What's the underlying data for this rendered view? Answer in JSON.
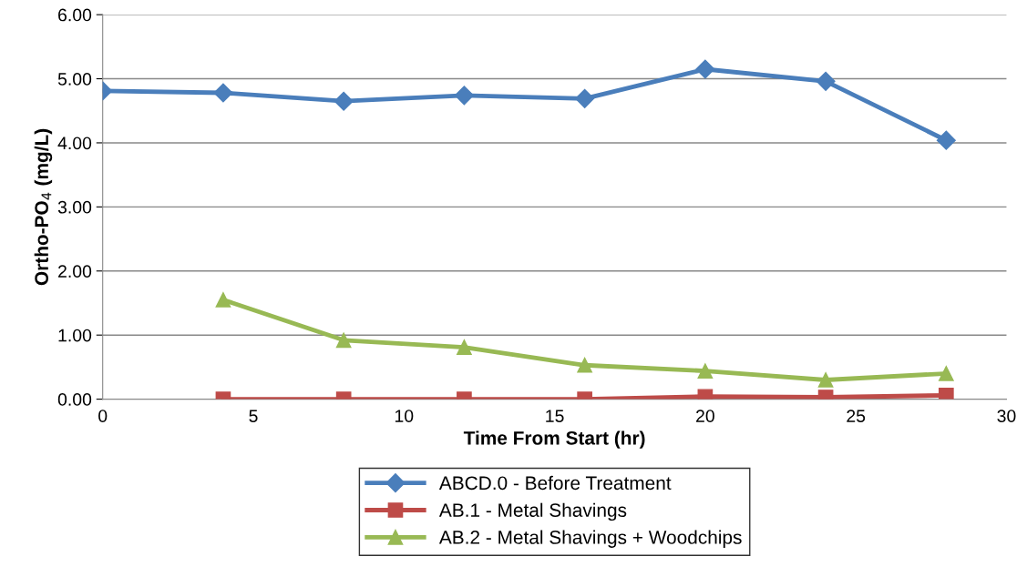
{
  "chart_data": {
    "type": "line",
    "xlabel": "Time From Start (hr)",
    "ylabel": "Ortho-PO$_{4}$ (mg/L)",
    "xlim": [
      0,
      30
    ],
    "xticks": [
      0,
      5,
      10,
      15,
      20,
      25,
      30
    ],
    "ylim": [
      0,
      6
    ],
    "yticks": [
      {
        "value": 0,
        "label": "0.00"
      },
      {
        "value": 1,
        "label": "1.00"
      },
      {
        "value": 2,
        "label": "2.00"
      },
      {
        "value": 3,
        "label": "3.00"
      },
      {
        "value": 4,
        "label": "4.00"
      },
      {
        "value": 5,
        "label": "5.00"
      },
      {
        "value": 6,
        "label": "6.00"
      }
    ],
    "grid": "y",
    "legend": "bottom",
    "line_style": "solid",
    "series": [
      {
        "name": "ABCD.0 - Before Treatment",
        "color": "#4a7ebb",
        "marker": "diamond",
        "x": [
          0,
          4,
          8,
          12,
          16,
          20,
          24,
          28
        ],
        "values": [
          4.81,
          4.78,
          4.65,
          4.74,
          4.69,
          5.15,
          4.96,
          4.04
        ]
      },
      {
        "name": "AB.1 - Metal Shavings",
        "color": "#be4b48",
        "marker": "square",
        "x": [
          4,
          8,
          12,
          16,
          20,
          24,
          28
        ],
        "values": [
          0.0,
          0.0,
          0.0,
          0.0,
          0.04,
          0.03,
          0.06
        ]
      },
      {
        "name": "AB.2 - Metal Shavings + Woodchips",
        "color": "#98b954",
        "marker": "triangle",
        "x": [
          4,
          8,
          12,
          16,
          20,
          24,
          28
        ],
        "values": [
          1.55,
          0.92,
          0.81,
          0.53,
          0.44,
          0.3,
          0.4
        ]
      }
    ]
  }
}
